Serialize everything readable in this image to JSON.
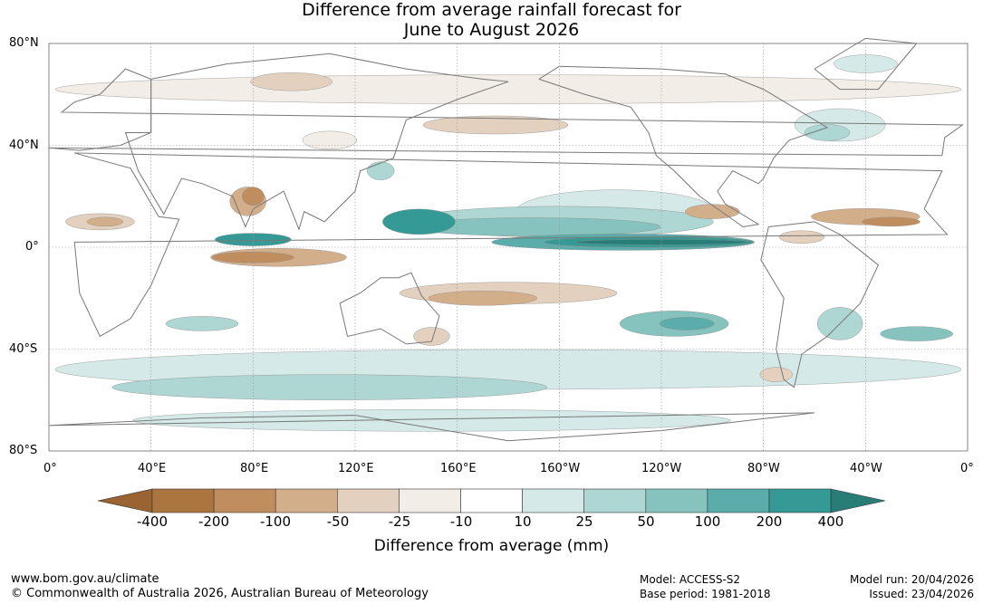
{
  "title": {
    "line1": "Difference from average rainfall forecast for",
    "line2": "June to August 2026"
  },
  "map": {
    "lat_labels": [
      "80°N",
      "40°N",
      "0°",
      "40°S",
      "80°S"
    ],
    "lon_labels": [
      "0°",
      "40°E",
      "80°E",
      "120°E",
      "160°E",
      "160°W",
      "120°W",
      "80°W",
      "40°W",
      "0°"
    ],
    "colors": {
      "strong_dry": "#ab7540",
      "dry_200": "#c08e5e",
      "dry_100": "#d3ae8b",
      "dry_50": "#e4d0be",
      "dry_25": "#f3ede7",
      "neutral": "#ffffff",
      "wet_10": "#d5eae8",
      "wet_25": "#aed6d3",
      "wet_50": "#86c3bf",
      "wet_100": "#5aadaa",
      "wet_200": "#359a95",
      "wet_400": "#287d79",
      "coast": "#777777",
      "grid": "#999999"
    }
  },
  "colorbar": {
    "ticks": [
      "-400",
      "-200",
      "-100",
      "-50",
      "-25",
      "-10",
      "10",
      "25",
      "50",
      "100",
      "200",
      "400"
    ],
    "colors": [
      "#9a6332",
      "#ab7540",
      "#c08e5e",
      "#d3ae8b",
      "#e4d0be",
      "#f3ede7",
      "#ffffff",
      "#d5eae8",
      "#aed6d3",
      "#86c3bf",
      "#5aadaa",
      "#359a95",
      "#287d79"
    ],
    "label": "Difference from average (mm)"
  },
  "footer": {
    "url": "www.bom.gov.au/climate",
    "copyright": "© Commonwealth of Australia 2026, Australian Bureau of Meteorology",
    "model": "Model: ACCESS-S2",
    "base_period": "Base period: 1981-2018",
    "model_run": "Model run: 20/04/2026",
    "issued": "Issued: 23/04/2026"
  }
}
